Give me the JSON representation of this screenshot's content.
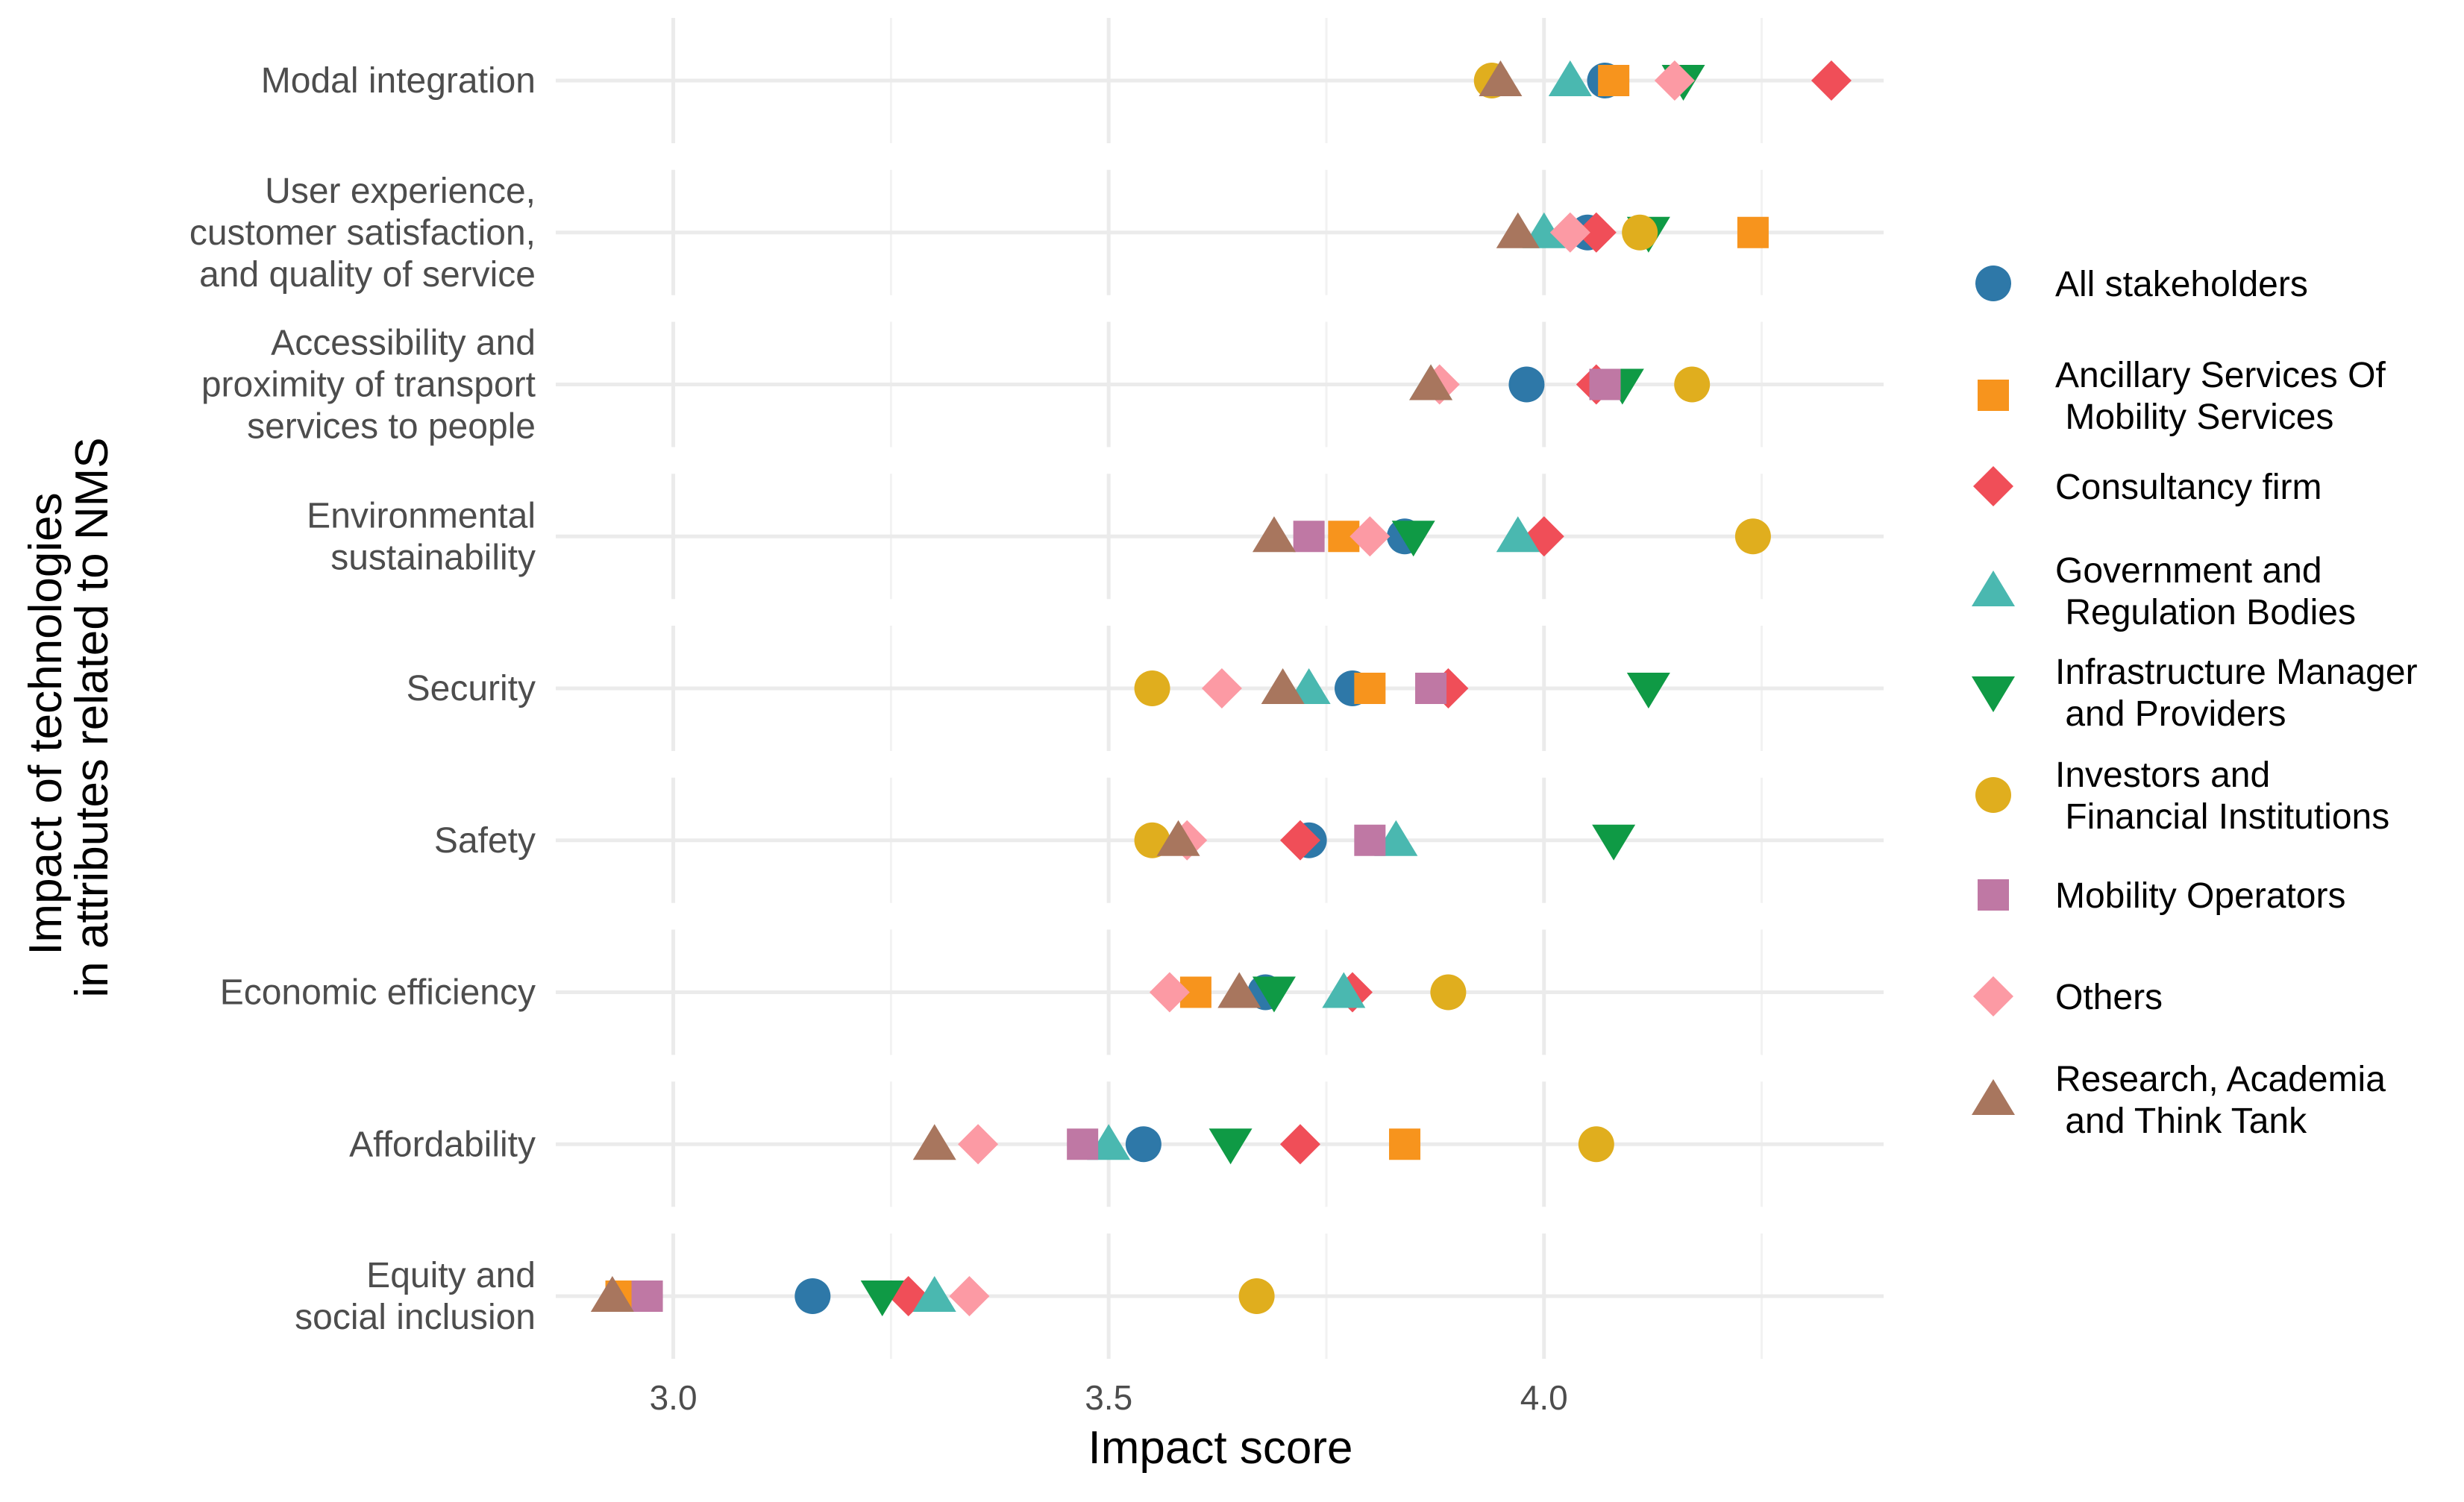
{
  "chart_data": {
    "type": "scatter",
    "title": "",
    "xlabel": "Impact score",
    "ylabel": [
      "Impact of technologies",
      "in attributes related to NMS"
    ],
    "xlim": [
      2.865,
      4.39
    ],
    "xticks": [
      3.0,
      3.5,
      4.0
    ],
    "xtick_labels": [
      "3.0",
      "3.5",
      "4.0"
    ],
    "grid": true,
    "legend_position": "right",
    "categories": [
      {
        "lines": [
          "Modal integration"
        ]
      },
      {
        "lines": [
          "User experience,",
          "customer satisfaction,",
          "and quality of service"
        ]
      },
      {
        "lines": [
          "Accessibility and",
          "proximity of transport",
          "services to people"
        ]
      },
      {
        "lines": [
          "Environmental",
          "sustainability"
        ]
      },
      {
        "lines": [
          "Security"
        ]
      },
      {
        "lines": [
          "Safety"
        ]
      },
      {
        "lines": [
          "Economic efficiency"
        ]
      },
      {
        "lines": [
          "Affordability"
        ]
      },
      {
        "lines": [
          "Equity and",
          "social inclusion"
        ]
      }
    ],
    "series": [
      {
        "name": "All stakeholders",
        "legend_lines": [
          "All stakeholders"
        ],
        "shape": "circle",
        "color": "#2e78a8",
        "values": [
          4.07,
          4.05,
          3.98,
          3.84,
          3.78,
          3.73,
          3.68,
          3.54,
          3.16
        ]
      },
      {
        "name": "Ancillary Services Of Mobility Services",
        "legend_lines": [
          "Ancillary Services Of",
          " Mobility Services"
        ],
        "shape": "square",
        "color": "#f7941d",
        "values": [
          4.08,
          4.24,
          null,
          3.77,
          3.8,
          null,
          3.6,
          3.84,
          2.94
        ]
      },
      {
        "name": "Consultancy firm",
        "legend_lines": [
          "Consultancy firm"
        ],
        "shape": "diamond",
        "color": "#f04e58",
        "values": [
          4.33,
          4.06,
          4.06,
          4.0,
          3.89,
          3.72,
          3.78,
          3.72,
          3.27
        ]
      },
      {
        "name": "Government and Regulation Bodies",
        "legend_lines": [
          "Government and",
          " Regulation Bodies"
        ],
        "shape": "triangle-up",
        "color": "#4ab8b0",
        "values": [
          4.03,
          4.0,
          3.87,
          3.97,
          3.73,
          3.83,
          3.77,
          3.5,
          3.3
        ]
      },
      {
        "name": "Infrastructure Manager and Providers",
        "legend_lines": [
          "Infrastructure Manager",
          " and Providers"
        ],
        "shape": "triangle-down",
        "color": "#0f9a45",
        "values": [
          4.16,
          4.12,
          4.09,
          3.85,
          4.12,
          4.08,
          3.69,
          3.64,
          3.24
        ]
      },
      {
        "name": "Investors and Financial Institutions",
        "legend_lines": [
          "Investors and",
          " Financial Institutions"
        ],
        "shape": "circle",
        "color": "#e0ae1e",
        "values": [
          3.94,
          4.11,
          4.17,
          4.24,
          3.55,
          3.55,
          3.89,
          4.06,
          3.67
        ]
      },
      {
        "name": "Mobility Operators",
        "legend_lines": [
          "Mobility Operators"
        ],
        "shape": "square",
        "color": "#bf78a4",
        "values": [
          null,
          null,
          4.07,
          3.73,
          3.87,
          3.8,
          null,
          3.47,
          2.97
        ]
      },
      {
        "name": "Others",
        "legend_lines": [
          "Others"
        ],
        "shape": "diamond",
        "color": "#fc9aa4",
        "values": [
          4.15,
          4.03,
          3.88,
          3.8,
          3.63,
          3.59,
          3.57,
          3.35,
          3.34
        ]
      },
      {
        "name": "Research, Academia and Think Tank",
        "legend_lines": [
          "Research, Academia",
          " and Think Tank"
        ],
        "shape": "triangle-up",
        "color": "#a8765e",
        "values": [
          3.95,
          3.97,
          3.87,
          3.69,
          3.7,
          3.58,
          3.65,
          3.3,
          2.93
        ]
      }
    ]
  }
}
